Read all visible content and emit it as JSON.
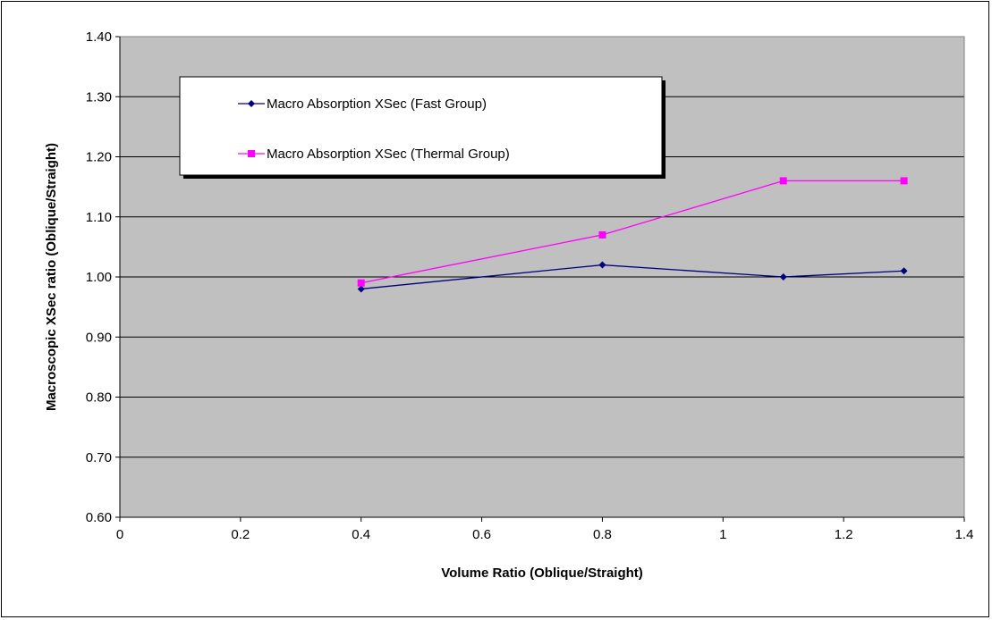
{
  "chart_data": {
    "type": "line",
    "title": "",
    "xlabel": "Volume Ratio (Oblique/Straight)",
    "ylabel": "Macroscopic XSec ratio (Oblique/Straight)",
    "xlim": [
      0,
      1.4
    ],
    "ylim": [
      0.6,
      1.4
    ],
    "x_ticks": [
      "0",
      "0.2",
      "0.4",
      "0.6",
      "0.8",
      "1",
      "1.2",
      "1.4"
    ],
    "y_ticks": [
      "0.60",
      "0.70",
      "0.80",
      "0.90",
      "1.00",
      "1.10",
      "1.20",
      "1.30",
      "1.40"
    ],
    "grid": "horizontal",
    "legend_position": "top-left",
    "plot_background": "#c0c0c0",
    "x": [
      0.4,
      0.8,
      1.1,
      1.3
    ],
    "series": [
      {
        "name": "Macro Absorption XSec (Fast Group)",
        "color": "#000080",
        "marker": "diamond",
        "values": [
          0.98,
          1.02,
          1.0,
          1.01
        ]
      },
      {
        "name": "Macro Absorption XSec (Thermal Group)",
        "color": "#ff00ff",
        "marker": "square",
        "values": [
          0.99,
          1.07,
          1.16,
          1.16
        ]
      }
    ]
  }
}
